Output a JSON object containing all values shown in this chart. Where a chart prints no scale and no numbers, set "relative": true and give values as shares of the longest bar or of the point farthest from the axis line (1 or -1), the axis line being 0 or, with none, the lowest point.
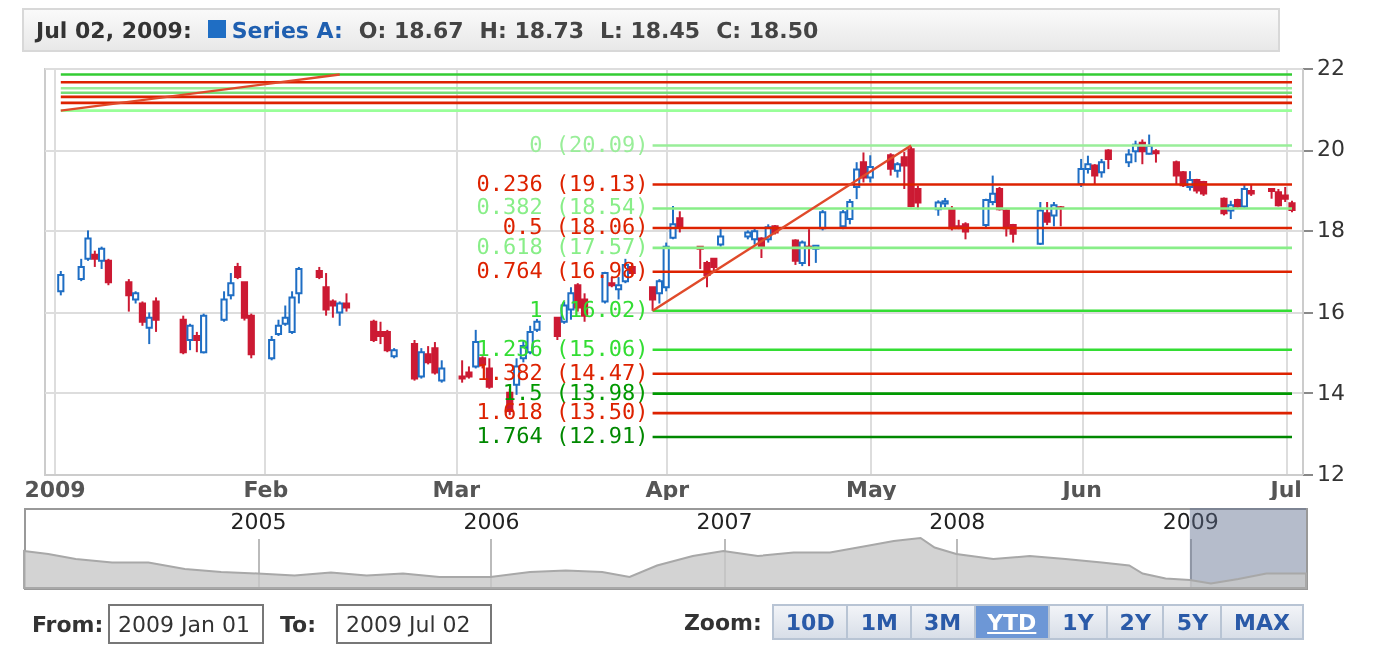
{
  "chart_data": [
    {
      "type": "candlestick",
      "title": "Jul 02, 2009:",
      "annotations": [
        "O: 18.67",
        "H: 18.73",
        "L: 18.45",
        "C: 18.50"
      ],
      "legend": "top left",
      "grid": true,
      "xlim": [
        "2009-01-01",
        "2009-07-02"
      ],
      "xticks": [
        {
          "value": "2009-01-01",
          "label": "2009"
        },
        {
          "value": "2009-02-01",
          "label": "Feb"
        },
        {
          "value": "2009-03-01",
          "label": "Mar"
        },
        {
          "value": "2009-04-01",
          "label": "Apr"
        },
        {
          "value": "2009-05-01",
          "label": "May"
        },
        {
          "value": "2009-06-01",
          "label": "Jun"
        },
        {
          "value": "2009-07-01",
          "label": "Jul"
        }
      ],
      "ylim": [
        12,
        22
      ],
      "yticks": [
        12,
        14,
        16,
        18,
        20,
        22
      ],
      "series": [
        {
          "type": "candlestick",
          "name": "Series A:",
          "color": "#1f6ec4",
          "x": [
            "2009-01-02",
            "2009-01-05",
            "2009-01-06",
            "2009-01-07",
            "2009-01-08",
            "2009-01-09",
            "2009-01-12",
            "2009-01-13",
            "2009-01-14",
            "2009-01-15",
            "2009-01-16",
            "2009-01-20",
            "2009-01-21",
            "2009-01-22",
            "2009-01-23",
            "2009-01-26",
            "2009-01-27",
            "2009-01-28",
            "2009-01-29",
            "2009-01-30",
            "2009-02-02",
            "2009-02-03",
            "2009-02-04",
            "2009-02-05",
            "2009-02-06",
            "2009-02-09",
            "2009-02-10",
            "2009-02-11",
            "2009-02-12",
            "2009-02-13",
            "2009-02-17",
            "2009-02-18",
            "2009-02-19",
            "2009-02-20",
            "2009-02-23",
            "2009-02-24",
            "2009-02-25",
            "2009-02-26",
            "2009-02-27",
            "2009-03-02",
            "2009-03-03",
            "2009-03-04",
            "2009-03-05",
            "2009-03-06",
            "2009-03-09",
            "2009-03-10",
            "2009-03-11",
            "2009-03-12",
            "2009-03-13",
            "2009-03-16",
            "2009-03-17",
            "2009-03-18",
            "2009-03-19",
            "2009-03-20",
            "2009-03-23",
            "2009-03-24",
            "2009-03-25",
            "2009-03-26",
            "2009-03-27",
            "2009-03-30",
            "2009-03-31",
            "2009-04-01",
            "2009-04-02",
            "2009-04-03",
            "2009-04-06",
            "2009-04-07",
            "2009-04-08",
            "2009-04-09",
            "2009-04-13",
            "2009-04-14",
            "2009-04-15",
            "2009-04-16",
            "2009-04-17",
            "2009-04-20",
            "2009-04-21",
            "2009-04-22",
            "2009-04-23",
            "2009-04-24",
            "2009-04-27",
            "2009-04-28",
            "2009-04-29",
            "2009-04-30",
            "2009-05-01",
            "2009-05-04",
            "2009-05-05",
            "2009-05-06",
            "2009-05-07",
            "2009-05-08",
            "2009-05-11",
            "2009-05-12",
            "2009-05-13",
            "2009-05-14",
            "2009-05-15",
            "2009-05-18",
            "2009-05-19",
            "2009-05-20",
            "2009-05-21",
            "2009-05-22",
            "2009-05-26",
            "2009-05-27",
            "2009-05-28",
            "2009-05-29",
            "2009-06-01",
            "2009-06-02",
            "2009-06-03",
            "2009-06-04",
            "2009-06-05",
            "2009-06-08",
            "2009-06-09",
            "2009-06-10",
            "2009-06-11",
            "2009-06-12",
            "2009-06-15",
            "2009-06-16",
            "2009-06-17",
            "2009-06-18",
            "2009-06-19",
            "2009-06-22",
            "2009-06-23",
            "2009-06-24",
            "2009-06-25",
            "2009-06-26",
            "2009-06-29",
            "2009-06-30",
            "2009-07-01",
            "2009-07-02"
          ],
          "ohlc": [
            [
              16.5,
              17.0,
              16.4,
              16.9
            ],
            [
              16.8,
              17.3,
              16.75,
              17.1
            ],
            [
              17.3,
              18.0,
              17.25,
              17.8
            ],
            [
              17.4,
              17.5,
              17.1,
              17.3
            ],
            [
              17.25,
              17.6,
              17.05,
              17.55
            ],
            [
              17.25,
              17.3,
              16.65,
              16.72
            ],
            [
              16.72,
              16.8,
              16.0,
              16.4
            ],
            [
              16.3,
              16.5,
              16.2,
              16.45
            ],
            [
              16.2,
              16.25,
              15.65,
              15.75
            ],
            [
              15.6,
              15.98,
              15.2,
              15.85
            ],
            [
              16.25,
              16.35,
              15.5,
              15.8
            ],
            [
              15.8,
              15.9,
              14.95,
              15.0
            ],
            [
              15.3,
              15.7,
              15.05,
              15.65
            ],
            [
              15.4,
              15.5,
              15.0,
              15.3
            ],
            [
              15.0,
              15.95,
              14.97,
              15.9
            ],
            [
              15.8,
              16.5,
              15.75,
              16.3
            ],
            [
              16.4,
              16.95,
              16.3,
              16.7
            ],
            [
              17.1,
              17.2,
              16.8,
              16.85
            ],
            [
              16.72,
              16.72,
              15.78,
              15.85
            ],
            [
              15.9,
              15.95,
              14.85,
              14.95
            ],
            [
              14.85,
              15.4,
              14.8,
              15.3
            ],
            [
              15.45,
              15.8,
              15.4,
              15.65
            ],
            [
              15.7,
              16.15,
              15.65,
              15.85
            ],
            [
              15.5,
              16.5,
              15.45,
              16.35
            ],
            [
              16.45,
              17.1,
              16.2,
              17.05
            ],
            [
              17.0,
              17.1,
              16.8,
              16.85
            ],
            [
              16.6,
              16.95,
              15.9,
              16.05
            ],
            [
              16.25,
              16.3,
              15.85,
              16.15
            ],
            [
              15.98,
              16.25,
              15.65,
              16.2
            ],
            [
              16.2,
              16.45,
              16.0,
              16.1
            ],
            [
              15.75,
              15.8,
              15.25,
              15.3
            ],
            [
              15.5,
              15.75,
              15.2,
              15.4
            ],
            [
              15.5,
              15.55,
              15.0,
              15.05
            ],
            [
              14.9,
              15.1,
              14.85,
              15.05
            ],
            [
              15.2,
              15.3,
              14.3,
              14.35
            ],
            [
              14.4,
              15.1,
              14.35,
              15.0
            ],
            [
              14.95,
              15.15,
              14.7,
              14.75
            ],
            [
              15.1,
              15.25,
              14.45,
              14.5
            ],
            [
              14.3,
              14.8,
              14.25,
              14.6
            ],
            [
              14.4,
              14.8,
              14.25,
              14.35
            ],
            [
              14.5,
              14.65,
              14.35,
              14.4
            ],
            [
              14.65,
              15.55,
              14.6,
              15.25
            ],
            [
              14.85,
              14.9,
              14.6,
              14.7
            ],
            [
              14.6,
              14.85,
              14.1,
              14.15
            ],
            [
              14.0,
              14.1,
              13.45,
              13.55
            ],
            [
              14.2,
              14.85,
              13.95,
              14.65
            ],
            [
              14.85,
              15.3,
              14.75,
              15.15
            ],
            [
              15.0,
              15.65,
              14.95,
              15.5
            ],
            [
              15.55,
              15.82,
              15.5,
              15.75
            ],
            [
              15.85,
              15.85,
              15.3,
              15.4
            ],
            [
              15.75,
              16.25,
              15.7,
              16.15
            ],
            [
              16.05,
              16.6,
              15.8,
              16.45
            ],
            [
              16.65,
              16.7,
              16.0,
              16.1
            ],
            [
              16.3,
              16.45,
              15.75,
              15.9
            ],
            [
              16.25,
              16.98,
              16.2,
              16.95
            ],
            [
              16.7,
              16.85,
              16.6,
              16.65
            ],
            [
              16.55,
              16.85,
              16.3,
              16.65
            ],
            [
              16.75,
              17.3,
              16.7,
              17.15
            ],
            [
              17.1,
              17.2,
              16.9,
              16.95
            ],
            [
              16.6,
              16.6,
              16.02,
              16.3
            ],
            [
              16.45,
              16.8,
              16.2,
              16.75
            ],
            [
              16.6,
              17.7,
              16.5,
              17.6
            ],
            [
              17.82,
              18.6,
              17.78,
              18.15
            ],
            [
              18.3,
              18.47,
              17.95,
              18.1
            ],
            [
              17.6,
              17.6,
              17.05,
              17.55
            ],
            [
              17.2,
              17.25,
              16.6,
              16.9
            ],
            [
              17.3,
              17.32,
              17.0,
              17.1
            ],
            [
              17.65,
              18.08,
              17.6,
              17.85
            ],
            [
              17.85,
              18.0,
              17.78,
              17.95
            ],
            [
              17.78,
              18.08,
              17.65,
              17.98
            ],
            [
              17.8,
              17.83,
              17.32,
              17.58
            ],
            [
              17.78,
              18.15,
              17.7,
              18.08
            ],
            [
              18.1,
              18.13,
              17.9,
              17.95
            ],
            [
              17.75,
              17.78,
              17.15,
              17.25
            ],
            [
              17.2,
              17.75,
              17.12,
              17.7
            ],
            [
              17.6,
              18.03,
              17.12,
              17.58
            ],
            [
              17.55,
              17.62,
              17.2,
              17.62
            ],
            [
              18.05,
              18.5,
              18.0,
              18.45
            ],
            [
              18.1,
              18.5,
              18.03,
              18.45
            ],
            [
              18.28,
              18.77,
              18.15,
              18.7
            ],
            [
              19.07,
              19.68,
              18.77,
              19.5
            ],
            [
              19.68,
              19.92,
              19.18,
              19.3
            ],
            [
              19.3,
              19.85,
              19.18,
              19.56
            ],
            [
              19.85,
              19.9,
              19.35,
              19.52
            ],
            [
              19.47,
              19.68,
              19.3,
              19.63
            ],
            [
              19.8,
              19.93,
              19.02,
              19.6
            ],
            [
              20.0,
              20.09,
              18.57,
              18.6
            ],
            [
              19.02,
              19.1,
              18.52,
              18.69
            ],
            [
              18.52,
              18.74,
              18.36,
              18.69
            ],
            [
              18.66,
              18.8,
              18.57,
              18.72
            ],
            [
              18.5,
              18.6,
              18.0,
              18.05
            ],
            [
              18.1,
              18.26,
              18.03,
              18.05
            ],
            [
              18.15,
              18.2,
              17.78,
              17.97
            ],
            [
              18.13,
              18.78,
              18.08,
              18.75
            ],
            [
              18.7,
              19.35,
              18.62,
              18.9
            ],
            [
              19.02,
              19.07,
              18.49,
              18.52
            ],
            [
              18.49,
              18.52,
              17.85,
              18.05
            ],
            [
              18.13,
              18.16,
              17.7,
              17.92
            ],
            [
              17.67,
              18.7,
              17.64,
              18.49
            ],
            [
              18.42,
              18.7,
              18.13,
              18.21
            ],
            [
              18.37,
              18.7,
              18.1,
              18.62
            ],
            [
              18.57,
              18.6,
              18.1,
              18.55
            ],
            [
              19.14,
              19.76,
              19.07,
              19.51
            ],
            [
              19.51,
              19.84,
              19.4,
              19.63
            ],
            [
              19.6,
              19.63,
              19.14,
              19.35
            ],
            [
              19.43,
              19.76,
              19.3,
              19.68
            ],
            [
              19.97,
              20.0,
              19.51,
              19.76
            ],
            [
              19.68,
              20.0,
              19.56,
              19.87
            ],
            [
              19.95,
              20.21,
              19.68,
              20.11
            ],
            [
              20.16,
              20.24,
              19.63,
              19.95
            ],
            [
              19.89,
              20.36,
              19.87,
              20.08
            ],
            [
              19.95,
              20.0,
              19.67,
              19.9
            ],
            [
              19.68,
              19.72,
              19.14,
              19.35
            ],
            [
              19.43,
              19.46,
              19.07,
              19.11
            ],
            [
              19.07,
              19.46,
              18.98,
              19.24
            ],
            [
              19.24,
              19.27,
              18.91,
              18.98
            ],
            [
              19.19,
              19.22,
              18.85,
              18.91
            ],
            [
              18.78,
              18.81,
              18.37,
              18.42
            ],
            [
              18.49,
              18.73,
              18.28,
              18.62
            ],
            [
              18.75,
              18.78,
              18.54,
              18.59
            ],
            [
              18.59,
              19.14,
              18.54,
              19.02
            ],
            [
              18.97,
              19.14,
              18.85,
              18.91
            ],
            [
              19.02,
              19.02,
              18.78,
              18.97
            ],
            [
              18.94,
              19.02,
              18.59,
              18.62
            ],
            [
              18.86,
              19.07,
              18.7,
              18.78
            ],
            [
              18.67,
              18.73,
              18.45,
              18.5
            ]
          ],
          "colors": [
            "#1f6ec4",
            "#1f6ec4",
            "#1f6ec4",
            "#cc1a33",
            "#1f6ec4",
            "#cc1a33",
            "#cc1a33",
            "#1f6ec4",
            "#cc1a33",
            "#1f6ec4",
            "#cc1a33",
            "#cc1a33",
            "#1f6ec4",
            "#cc1a33",
            "#1f6ec4",
            "#1f6ec4",
            "#1f6ec4",
            "#cc1a33",
            "#cc1a33",
            "#cc1a33",
            "#1f6ec4",
            "#1f6ec4",
            "#1f6ec4",
            "#1f6ec4",
            "#1f6ec4",
            "#cc1a33",
            "#cc1a33",
            "#cc1a33",
            "#1f6ec4",
            "#cc1a33",
            "#cc1a33",
            "#cc1a33",
            "#cc1a33",
            "#1f6ec4",
            "#cc1a33",
            "#1f6ec4",
            "#cc1a33",
            "#cc1a33",
            "#1f6ec4",
            "#cc1a33",
            "#cc1a33",
            "#1f6ec4",
            "#cc1a33",
            "#cc1a33",
            "#cc1a33",
            "#1f6ec4",
            "#1f6ec4",
            "#1f6ec4",
            "#1f6ec4",
            "#cc1a33",
            "#1f6ec4",
            "#1f6ec4",
            "#cc1a33",
            "#cc1a33",
            "#1f6ec4",
            "#cc1a33",
            "#1f6ec4",
            "#1f6ec4",
            "#cc1a33",
            "#cc1a33",
            "#1f6ec4",
            "#1f6ec4",
            "#1f6ec4",
            "#cc1a33",
            "#cc1a33",
            "#cc1a33",
            "#cc1a33",
            "#1f6ec4",
            "#1f6ec4",
            "#1f6ec4",
            "#cc1a33",
            "#1f6ec4",
            "#cc1a33",
            "#cc1a33",
            "#1f6ec4",
            "#cc1a33",
            "#1f6ec4",
            "#1f6ec4",
            "#1f6ec4",
            "#1f6ec4",
            "#1f6ec4",
            "#cc1a33",
            "#1f6ec4",
            "#cc1a33",
            "#1f6ec4",
            "#cc1a33",
            "#cc1a33",
            "#cc1a33",
            "#1f6ec4",
            "#1f6ec4",
            "#cc1a33",
            "#cc1a33",
            "#cc1a33",
            "#1f6ec4",
            "#1f6ec4",
            "#cc1a33",
            "#cc1a33",
            "#cc1a33",
            "#1f6ec4",
            "#cc1a33",
            "#1f6ec4",
            "#cc1a33",
            "#1f6ec4",
            "#1f6ec4",
            "#cc1a33",
            "#1f6ec4",
            "#cc1a33",
            "#1f6ec4",
            "#1f6ec4",
            "#cc1a33",
            "#1f6ec4",
            "#cc1a33",
            "#cc1a33",
            "#cc1a33",
            "#1f6ec4",
            "#cc1a33",
            "#cc1a33",
            "#cc1a33",
            "#1f6ec4",
            "#cc1a33",
            "#1f6ec4",
            "#cc1a33",
            "#cc1a33",
            "#cc1a33",
            "#cc1a33",
            "#cc1a33"
          ]
        },
        {
          "type": "line",
          "color": "#e04a2a",
          "x": [
            "2009-01-02",
            "2009-02-12"
          ],
          "values": [
            20.95,
            21.84
          ]
        },
        {
          "type": "line",
          "color": "#e04a2a",
          "x": [
            "2009-03-30",
            "2009-05-07"
          ],
          "values": [
            16.02,
            20.09
          ]
        }
      ],
      "ref_lines": [
        {
          "axis": "y",
          "value": 21.84,
          "color": "#33cc33"
        },
        {
          "axis": "y",
          "value": 21.65,
          "color": "#dd2200"
        },
        {
          "axis": "y",
          "value": 21.5,
          "color": "#99ee99"
        },
        {
          "axis": "y",
          "value": 21.39,
          "color": "#77dd77"
        },
        {
          "axis": "y",
          "value": 21.29,
          "color": "#dd2200"
        },
        {
          "axis": "y",
          "value": 21.14,
          "color": "#dd2200"
        },
        {
          "axis": "y",
          "value": 20.95,
          "color": "#99ff99"
        },
        {
          "axis": "y",
          "value": 20.09,
          "label": "0 (20.09)",
          "color": "#99ee99"
        },
        {
          "axis": "y",
          "value": 19.13,
          "label": "0.236 (19.13)",
          "color": "#dd2200"
        },
        {
          "axis": "y",
          "value": 18.54,
          "label": "0.382 (18.54)",
          "color": "#88ee88"
        },
        {
          "axis": "y",
          "value": 18.06,
          "label": "0.5 (18.06)",
          "color": "#dd2200"
        },
        {
          "axis": "y",
          "value": 17.57,
          "label": "0.618 (17.57)",
          "color": "#88ee88"
        },
        {
          "axis": "y",
          "value": 16.98,
          "label": "0.764 (16.98)",
          "color": "#dd2200"
        },
        {
          "axis": "y",
          "value": 16.02,
          "label": "1 (16.02)",
          "color": "#33dd33"
        },
        {
          "axis": "y",
          "value": 15.06,
          "label": "1.236 (15.06)",
          "color": "#33dd33"
        },
        {
          "axis": "y",
          "value": 14.47,
          "label": "1.382 (14.47)",
          "color": "#dd2200"
        },
        {
          "axis": "y",
          "value": 13.98,
          "label": "1.5 (13.98)",
          "color": "#009900"
        },
        {
          "axis": "y",
          "value": 13.5,
          "label": "1.618 (13.50)",
          "color": "#dd2200"
        },
        {
          "axis": "y",
          "value": 12.91,
          "label": "1.764 (12.91)",
          "color": "#008800"
        }
      ]
    },
    {
      "type": "area",
      "relative": true,
      "color": "#c8c8c8",
      "grid": "x",
      "annotations": [
        "From:",
        "2009 Jan 01",
        "To:",
        "2009 Jul 02",
        "Zoom:",
        "10D",
        "1M",
        "3M",
        "YTD",
        "1Y",
        "2Y",
        "5Y",
        "MAX"
      ],
      "xlim": [
        "2004-01-01",
        "2009-07-02"
      ],
      "xticks": [
        {
          "value": "2005-01-01",
          "label": "2005"
        },
        {
          "value": "2006-01-01",
          "label": "2006"
        },
        {
          "value": "2007-01-01",
          "label": "2007"
        },
        {
          "value": "2008-01-01",
          "label": "2008"
        },
        {
          "value": "2009-01-01",
          "label": "2009"
        }
      ],
      "x": [
        "2004-01-01",
        "2004-02-08",
        "2004-03-22",
        "2004-05-18",
        "2004-07-14",
        "2004-09-09",
        "2004-11-05",
        "2005-01-01",
        "2005-02-28",
        "2005-04-26",
        "2005-06-21",
        "2005-08-17",
        "2005-10-13",
        "2006-01-01",
        "2006-03-04",
        "2006-04-29",
        "2006-06-25",
        "2006-08-07",
        "2006-09-19",
        "2006-11-14",
        "2007-01-01",
        "2007-02-24",
        "2007-04-21",
        "2007-06-17",
        "2007-08-13",
        "2007-09-25",
        "2007-11-06",
        "2007-11-28",
        "2008-01-01",
        "2008-02-28",
        "2008-04-25",
        "2008-06-20",
        "2008-08-16",
        "2008-09-28",
        "2008-10-19",
        "2008-11-24",
        "2009-01-01",
        "2009-02-03",
        "2009-03-18",
        "2009-05-01",
        "2009-07-02"
      ],
      "values": [
        0.74,
        0.68,
        0.58,
        0.51,
        0.51,
        0.38,
        0.32,
        0.29,
        0.25,
        0.31,
        0.25,
        0.29,
        0.22,
        0.22,
        0.32,
        0.35,
        0.32,
        0.22,
        0.45,
        0.64,
        0.74,
        0.64,
        0.71,
        0.71,
        0.84,
        0.94,
        1,
        0.81,
        0.68,
        0.58,
        0.64,
        0.58,
        0.51,
        0.45,
        0.29,
        0.19,
        0.16,
        0.09,
        0.18,
        0.29,
        0.29
      ],
      "bands": [
        {
          "axis": "x",
          "from": "2009-01-01",
          "to": "2009-07-02",
          "color": "#5b6a8c"
        }
      ]
    }
  ]
}
